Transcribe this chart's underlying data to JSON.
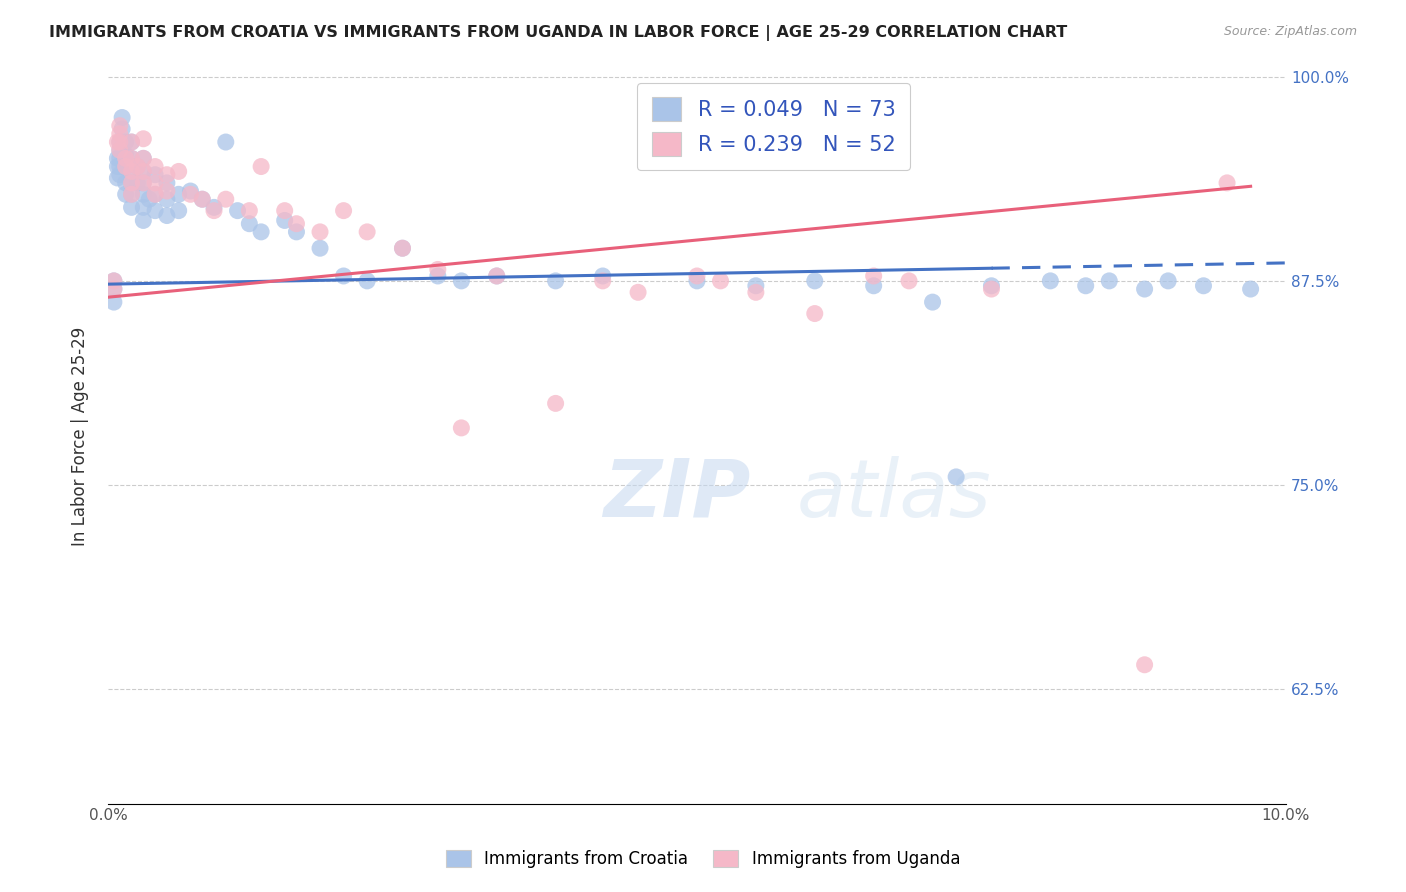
{
  "title": "IMMIGRANTS FROM CROATIA VS IMMIGRANTS FROM UGANDA IN LABOR FORCE | AGE 25-29 CORRELATION CHART",
  "source": "Source: ZipAtlas.com",
  "ylabel": "In Labor Force | Age 25-29",
  "xlim": [
    0.0,
    0.1
  ],
  "ylim": [
    0.555,
    1.005
  ],
  "xticks": [
    0.0,
    0.02,
    0.04,
    0.06,
    0.08,
    0.1
  ],
  "xticklabels": [
    "0.0%",
    "",
    "",
    "",
    "",
    "10.0%"
  ],
  "yticks": [
    0.625,
    0.75,
    0.875,
    1.0
  ],
  "yticklabels": [
    "62.5%",
    "75.0%",
    "87.5%",
    "100.0%"
  ],
  "croatia_color": "#aac4e8",
  "uganda_color": "#f5b8c8",
  "croatia_R": 0.049,
  "croatia_N": 73,
  "uganda_R": 0.239,
  "uganda_N": 52,
  "trend_croatia_color": "#4472c4",
  "trend_uganda_color": "#e8607a",
  "watermark": "ZIPatlas",
  "legend_R_color": "#3355bb",
  "croatia_x": [
    0.0005,
    0.0005,
    0.0005,
    0.0008,
    0.0008,
    0.0008,
    0.001,
    0.001,
    0.001,
    0.001,
    0.001,
    0.0012,
    0.0012,
    0.0015,
    0.0015,
    0.0015,
    0.0015,
    0.0015,
    0.002,
    0.002,
    0.002,
    0.002,
    0.002,
    0.002,
    0.0025,
    0.0025,
    0.003,
    0.003,
    0.003,
    0.003,
    0.003,
    0.003,
    0.0035,
    0.004,
    0.004,
    0.004,
    0.005,
    0.005,
    0.005,
    0.006,
    0.006,
    0.007,
    0.008,
    0.009,
    0.01,
    0.011,
    0.012,
    0.013,
    0.015,
    0.016,
    0.018,
    0.02,
    0.022,
    0.025,
    0.028,
    0.03,
    0.033,
    0.038,
    0.042,
    0.05,
    0.055,
    0.06,
    0.065,
    0.07,
    0.072,
    0.075,
    0.08,
    0.083,
    0.085,
    0.088,
    0.09,
    0.093,
    0.097
  ],
  "croatia_y": [
    0.875,
    0.87,
    0.862,
    0.95,
    0.945,
    0.938,
    0.96,
    0.955,
    0.95,
    0.945,
    0.94,
    0.975,
    0.968,
    0.96,
    0.952,
    0.945,
    0.935,
    0.928,
    0.96,
    0.95,
    0.942,
    0.935,
    0.928,
    0.92,
    0.945,
    0.935,
    0.95,
    0.942,
    0.935,
    0.928,
    0.92,
    0.912,
    0.925,
    0.94,
    0.928,
    0.918,
    0.935,
    0.925,
    0.915,
    0.928,
    0.918,
    0.93,
    0.925,
    0.92,
    0.96,
    0.918,
    0.91,
    0.905,
    0.912,
    0.905,
    0.895,
    0.878,
    0.875,
    0.895,
    0.878,
    0.875,
    0.878,
    0.875,
    0.878,
    0.875,
    0.872,
    0.875,
    0.872,
    0.862,
    0.755,
    0.872,
    0.875,
    0.872,
    0.875,
    0.87,
    0.875,
    0.872,
    0.87
  ],
  "uganda_x": [
    0.0005,
    0.0005,
    0.0008,
    0.001,
    0.001,
    0.001,
    0.001,
    0.0015,
    0.0015,
    0.002,
    0.002,
    0.002,
    0.002,
    0.002,
    0.0025,
    0.003,
    0.003,
    0.003,
    0.003,
    0.004,
    0.004,
    0.004,
    0.005,
    0.005,
    0.006,
    0.007,
    0.008,
    0.009,
    0.01,
    0.012,
    0.013,
    0.015,
    0.016,
    0.018,
    0.02,
    0.022,
    0.025,
    0.028,
    0.03,
    0.033,
    0.038,
    0.042,
    0.045,
    0.05,
    0.052,
    0.055,
    0.06,
    0.065,
    0.068,
    0.075,
    0.088,
    0.095
  ],
  "uganda_y": [
    0.875,
    0.87,
    0.96,
    0.97,
    0.965,
    0.96,
    0.955,
    0.95,
    0.945,
    0.96,
    0.95,
    0.942,
    0.935,
    0.928,
    0.945,
    0.962,
    0.95,
    0.942,
    0.935,
    0.945,
    0.935,
    0.928,
    0.94,
    0.93,
    0.942,
    0.928,
    0.925,
    0.918,
    0.925,
    0.918,
    0.945,
    0.918,
    0.91,
    0.905,
    0.918,
    0.905,
    0.895,
    0.882,
    0.785,
    0.878,
    0.8,
    0.875,
    0.868,
    0.878,
    0.875,
    0.868,
    0.855,
    0.878,
    0.875,
    0.87,
    0.64,
    0.935
  ],
  "trend_croatia_solid_end": 0.075,
  "trend_croatia_x_start": 0.0,
  "trend_croatia_x_end": 0.1,
  "trend_uganda_x_start": 0.0,
  "trend_uganda_x_end": 0.097
}
